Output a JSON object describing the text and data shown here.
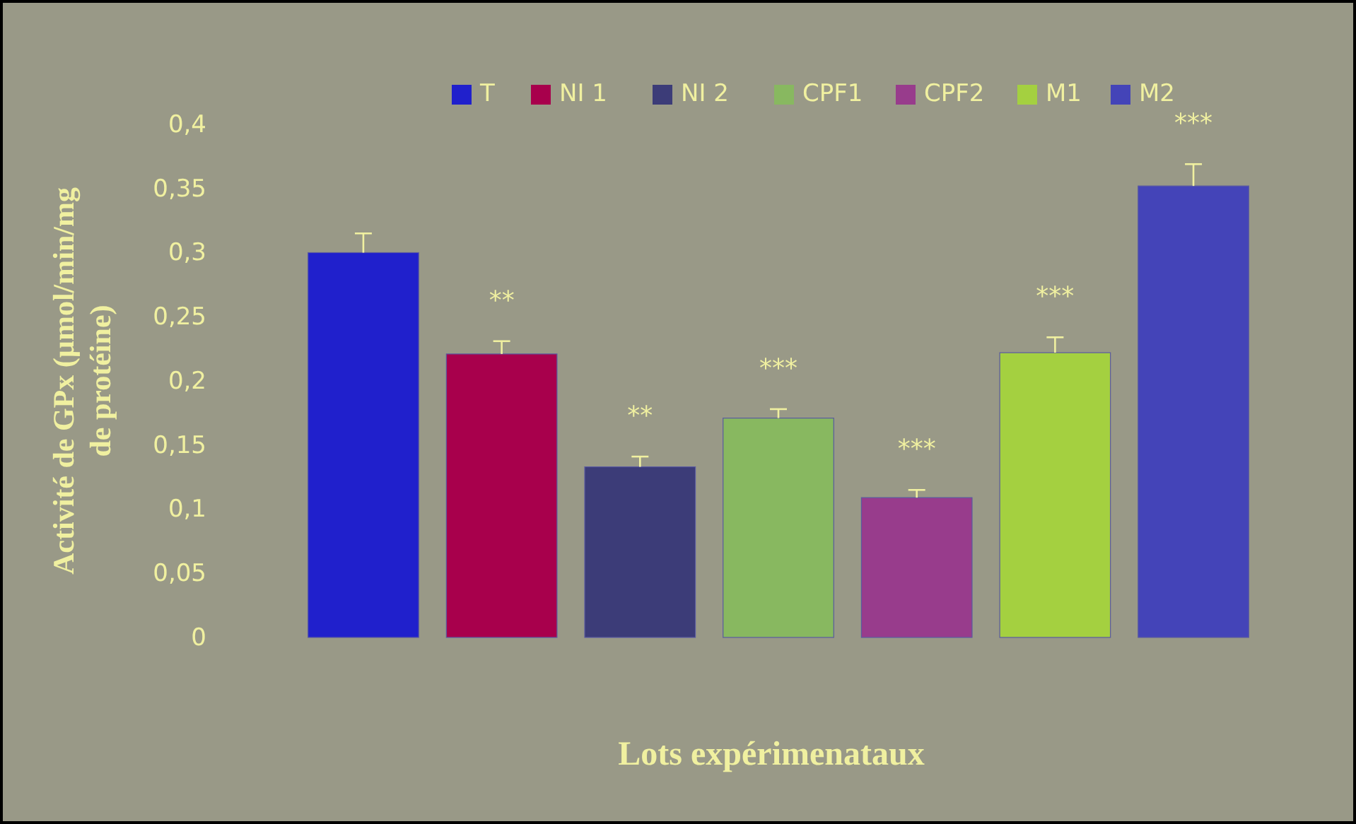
{
  "chart_data": {
    "type": "bar",
    "xlabel": "Lots expérimenataux",
    "ylabel": "Activité de GPx (µmol/min/mg de protéine)",
    "categories": [
      null
    ],
    "series": [
      {
        "name": "T",
        "color": "#2020cc",
        "values": [
          0.3
        ],
        "errors": [
          0.015
        ]
      },
      {
        "name": "NI 1",
        "color": "#a8004c",
        "values": [
          0.221
        ],
        "errors": [
          0.01
        ]
      },
      {
        "name": "NI 2",
        "color": "#3c3c78",
        "values": [
          0.133
        ],
        "errors": [
          0.008
        ]
      },
      {
        "name": "CPF1",
        "color": "#88b860",
        "values": [
          0.171
        ],
        "errors": [
          0.007
        ]
      },
      {
        "name": "CPF2",
        "color": "#983c8c",
        "values": [
          0.109
        ],
        "errors": [
          0.006
        ]
      },
      {
        "name": "M1",
        "color": "#a4d040",
        "values": [
          0.222
        ],
        "errors": [
          0.012
        ]
      },
      {
        "name": "M2",
        "color": "#4444b8",
        "values": [
          0.352
        ],
        "errors": [
          0.017
        ]
      }
    ],
    "ylim": [
      0,
      0.4
    ],
    "yticks": [
      {
        "value": 0,
        "label": "0"
      },
      {
        "value": 0.05,
        "label": "0,05"
      },
      {
        "value": 0.1,
        "label": "0,1"
      },
      {
        "value": 0.15,
        "label": "0,15"
      },
      {
        "value": 0.2,
        "label": "0,2"
      },
      {
        "value": 0.25,
        "label": "0,25"
      },
      {
        "value": 0.3,
        "label": "0,3"
      },
      {
        "value": 0.35,
        "label": "0,35"
      },
      {
        "value": 0.4,
        "label": "0,4"
      }
    ],
    "annotations": [
      "**",
      "**",
      "***",
      "***",
      "***",
      "***"
    ],
    "legend": "top",
    "tick_labels": "y",
    "grid": false
  }
}
